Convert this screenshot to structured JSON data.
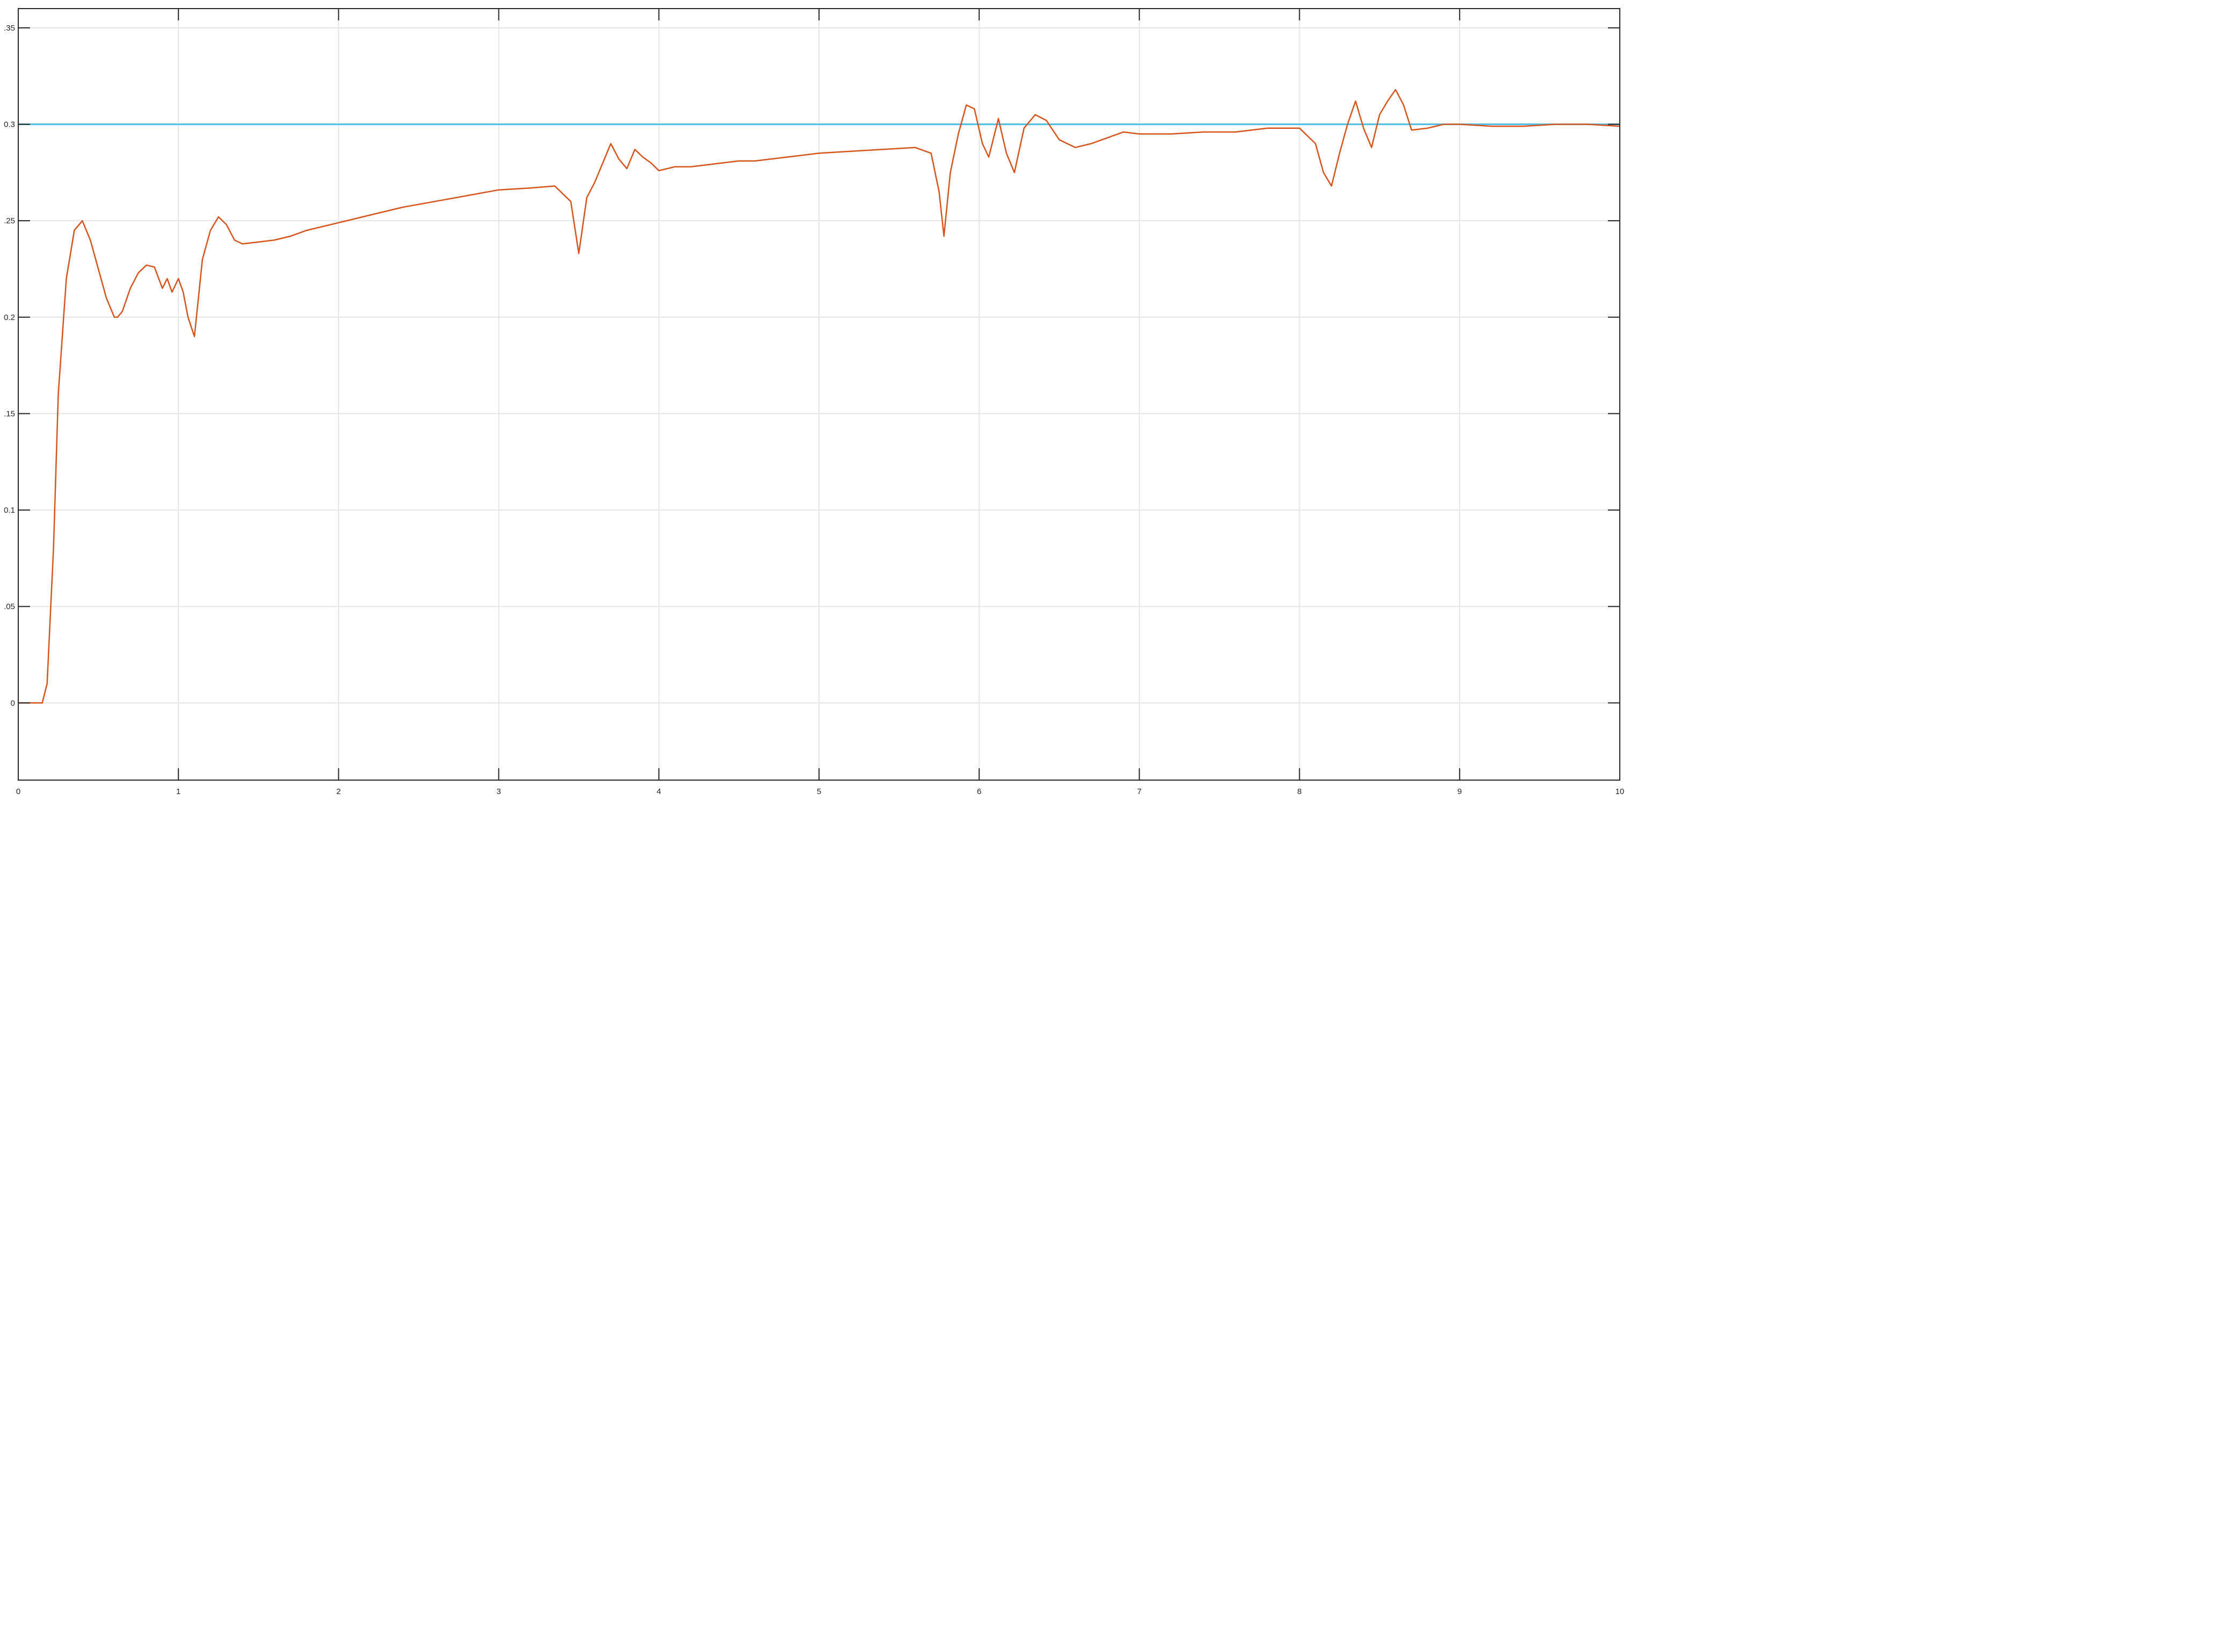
{
  "chart_data": {
    "type": "line",
    "title": "",
    "xlabel": "",
    "ylabel": "",
    "xlim": [
      0,
      10
    ],
    "ylim": [
      -0.04,
      0.36
    ],
    "xticks": [
      0,
      1,
      2,
      3,
      4,
      5,
      6,
      7,
      8,
      9,
      10
    ],
    "xtick_labels": [
      "0",
      "1",
      "2",
      "3",
      "4",
      "5",
      "6",
      "7",
      "8",
      "9",
      "10"
    ],
    "yticks": [
      0,
      0.05,
      0.1,
      0.15,
      0.2,
      0.25,
      0.3,
      0.35
    ],
    "ytick_labels": [
      "0",
      ".05",
      "0.1",
      ".15",
      "0.2",
      ".25",
      "0.3",
      ".35"
    ],
    "grid": true,
    "legend": "none",
    "series": [
      {
        "color": "#4dbeee",
        "x": [
          0,
          10
        ],
        "y": [
          0.3,
          0.3
        ]
      },
      {
        "color": "#d95319",
        "x": [
          0,
          0.15,
          0.18,
          0.22,
          0.25,
          0.3,
          0.35,
          0.4,
          0.45,
          0.5,
          0.55,
          0.6,
          0.62,
          0.65,
          0.7,
          0.75,
          0.8,
          0.85,
          0.9,
          0.93,
          0.96,
          1.0,
          1.03,
          1.06,
          1.1,
          1.15,
          1.2,
          1.25,
          1.3,
          1.35,
          1.4,
          1.5,
          1.6,
          1.7,
          1.8,
          2.0,
          2.2,
          2.4,
          2.6,
          2.8,
          3.0,
          3.2,
          3.35,
          3.45,
          3.5,
          3.55,
          3.6,
          3.65,
          3.7,
          3.75,
          3.8,
          3.85,
          3.9,
          3.95,
          4.0,
          4.1,
          4.2,
          4.3,
          4.4,
          4.5,
          4.6,
          4.8,
          5.0,
          5.2,
          5.4,
          5.6,
          5.7,
          5.75,
          5.78,
          5.82,
          5.87,
          5.92,
          5.97,
          6.02,
          6.06,
          6.12,
          6.17,
          6.22,
          6.28,
          6.35,
          6.42,
          6.5,
          6.6,
          6.7,
          6.8,
          6.9,
          7.0,
          7.2,
          7.4,
          7.6,
          7.8,
          8.0,
          8.1,
          8.15,
          8.2,
          8.25,
          8.3,
          8.35,
          8.4,
          8.45,
          8.5,
          8.55,
          8.6,
          8.65,
          8.7,
          8.8,
          8.9,
          9.0,
          9.2,
          9.4,
          9.6,
          9.8,
          10.0
        ],
        "y": [
          0,
          0,
          0.01,
          0.08,
          0.16,
          0.22,
          0.245,
          0.25,
          0.24,
          0.225,
          0.21,
          0.2,
          0.2,
          0.203,
          0.215,
          0.223,
          0.227,
          0.226,
          0.215,
          0.22,
          0.213,
          0.22,
          0.213,
          0.2,
          0.19,
          0.23,
          0.245,
          0.252,
          0.248,
          0.24,
          0.238,
          0.239,
          0.24,
          0.242,
          0.245,
          0.249,
          0.253,
          0.257,
          0.26,
          0.263,
          0.266,
          0.267,
          0.268,
          0.26,
          0.233,
          0.262,
          0.27,
          0.28,
          0.29,
          0.282,
          0.277,
          0.287,
          0.283,
          0.28,
          0.276,
          0.278,
          0.278,
          0.279,
          0.28,
          0.281,
          0.281,
          0.283,
          0.285,
          0.286,
          0.287,
          0.288,
          0.285,
          0.265,
          0.242,
          0.275,
          0.295,
          0.31,
          0.308,
          0.29,
          0.283,
          0.303,
          0.285,
          0.275,
          0.298,
          0.305,
          0.302,
          0.292,
          0.288,
          0.29,
          0.293,
          0.296,
          0.295,
          0.295,
          0.296,
          0.296,
          0.298,
          0.298,
          0.29,
          0.275,
          0.268,
          0.285,
          0.3,
          0.312,
          0.298,
          0.288,
          0.305,
          0.312,
          0.318,
          0.31,
          0.297,
          0.298,
          0.3,
          0.3,
          0.299,
          0.299,
          0.3,
          0.3,
          0.299
        ]
      }
    ]
  }
}
